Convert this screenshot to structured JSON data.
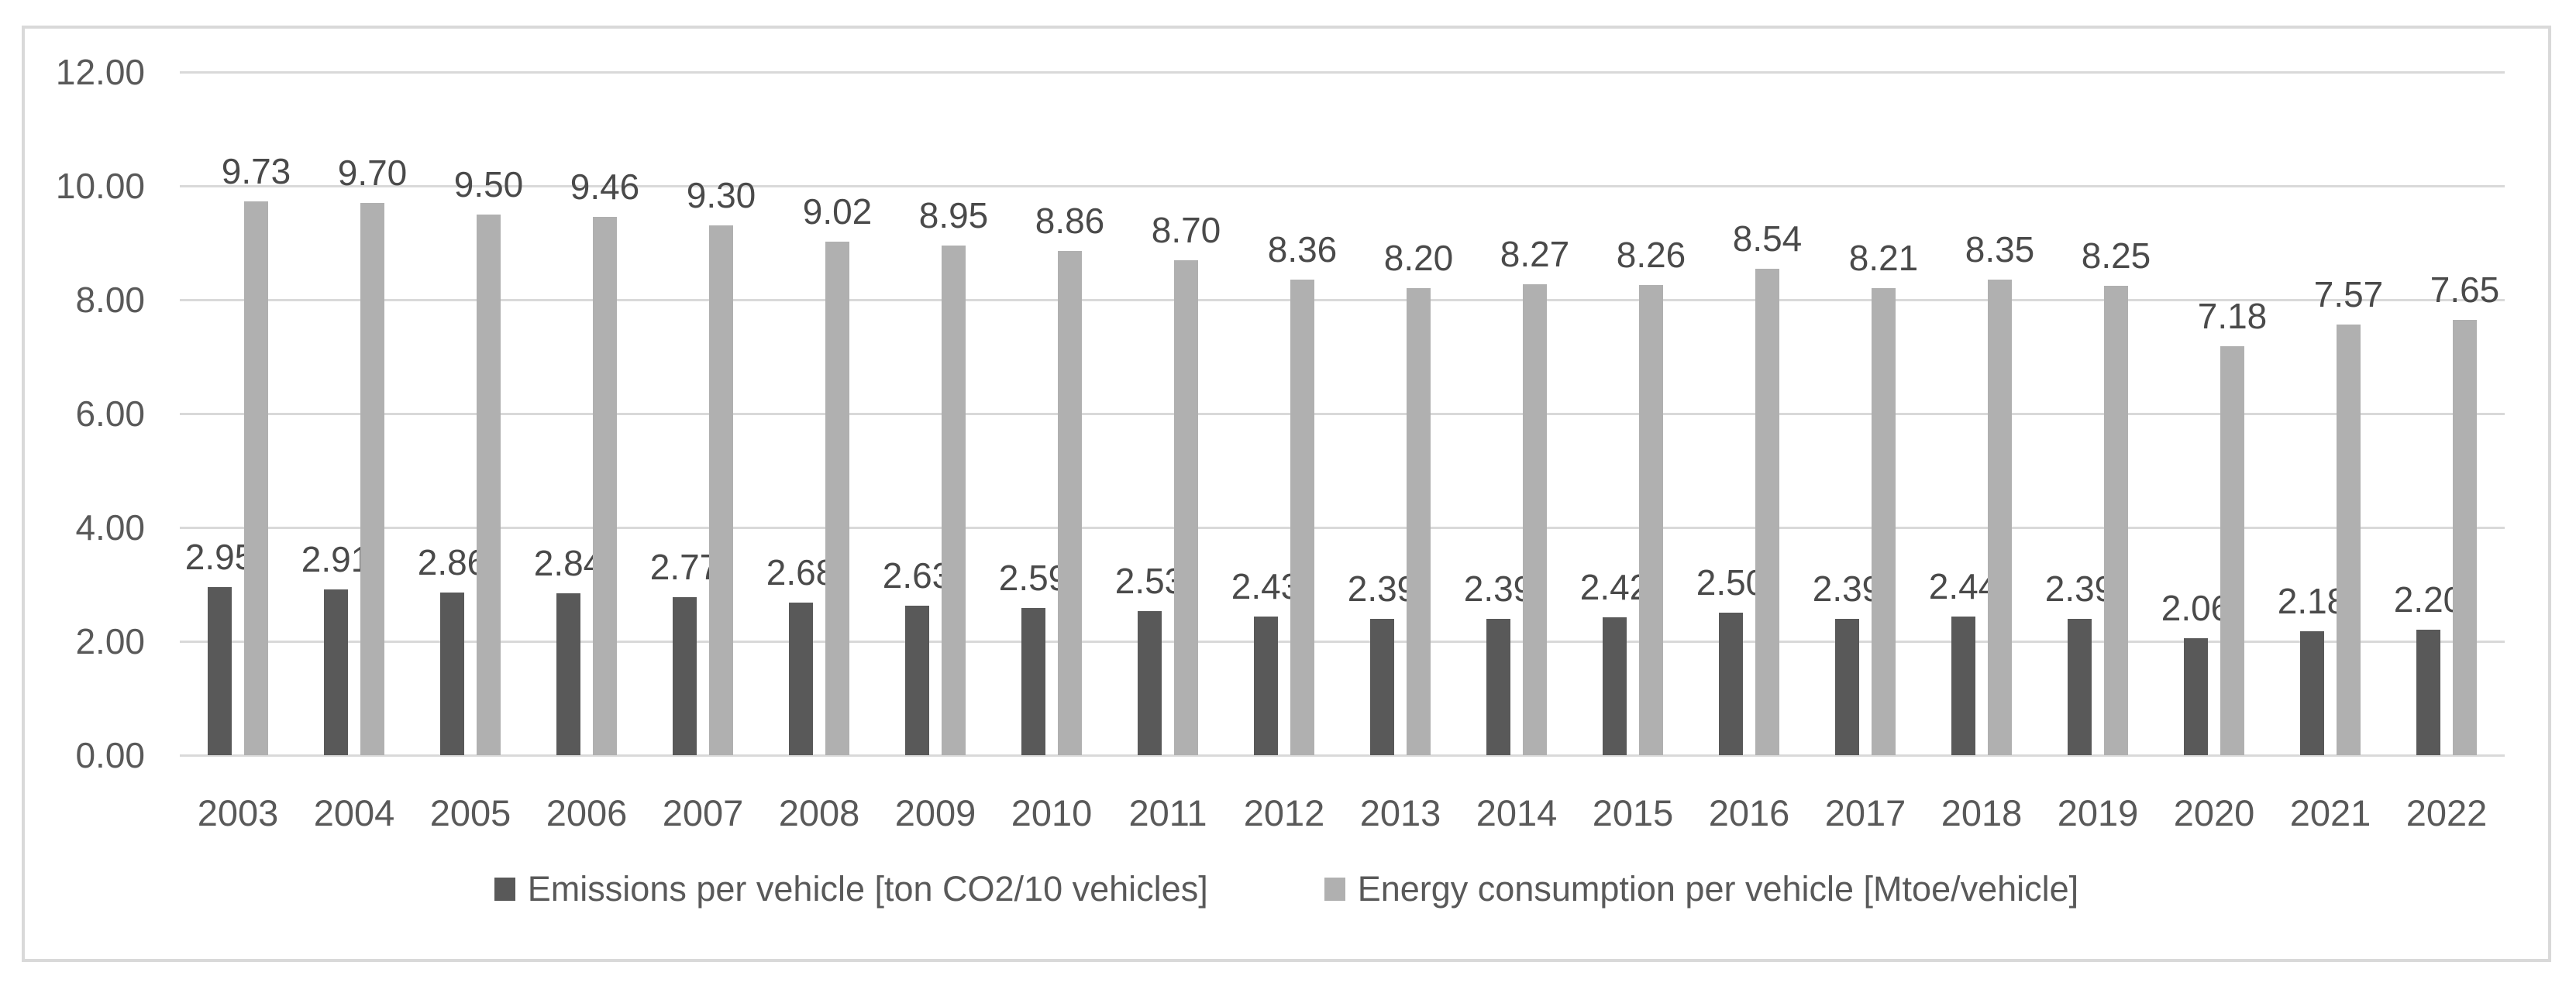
{
  "chart_data": {
    "type": "bar",
    "title": "",
    "xlabel": "",
    "ylabel": "",
    "ylim": [
      0,
      12
    ],
    "ytick_step": 2,
    "ytick_labels": [
      "0.00",
      "2.00",
      "4.00",
      "6.00",
      "8.00",
      "10.00",
      "12.00"
    ],
    "grid": true,
    "legend_position": "bottom",
    "value_label_decimals": 2,
    "categories": [
      "2003",
      "2004",
      "2005",
      "2006",
      "2007",
      "2008",
      "2009",
      "2010",
      "2011",
      "2012",
      "2013",
      "2014",
      "2015",
      "2016",
      "2017",
      "2018",
      "2019",
      "2020",
      "2021",
      "2022"
    ],
    "series": [
      {
        "name": "Emissions per vehicle [ton CO2/10 vehicles]",
        "color": "#595959",
        "values": [
          2.95,
          2.91,
          2.86,
          2.84,
          2.77,
          2.68,
          2.63,
          2.59,
          2.53,
          2.43,
          2.39,
          2.39,
          2.42,
          2.5,
          2.39,
          2.44,
          2.39,
          2.06,
          2.18,
          2.2
        ]
      },
      {
        "name": "Energy consumption per vehicle [Mtoe/vehicle]",
        "color": "#b0b0b0",
        "values": [
          9.73,
          9.7,
          9.5,
          9.46,
          9.3,
          9.02,
          8.95,
          8.86,
          8.7,
          8.36,
          8.2,
          8.27,
          8.26,
          8.54,
          8.21,
          8.35,
          8.25,
          7.18,
          7.57,
          7.65
        ]
      }
    ]
  },
  "colors": {
    "frame_border": "#d9d9d9",
    "gridline": "#d9d9d9",
    "axis_text": "#595959",
    "value_label_text": "#4a4a4a",
    "series_dark": "#595959",
    "series_light": "#b0b0b0",
    "background": "#ffffff"
  }
}
